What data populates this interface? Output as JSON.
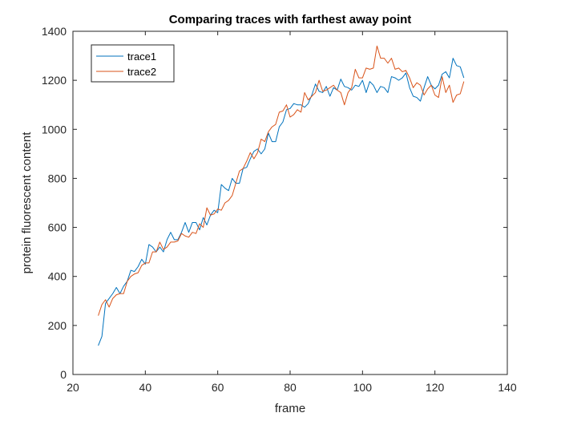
{
  "chart_data": {
    "type": "line",
    "title": "Comparing traces with farthest away point",
    "xlabel": "frame",
    "ylabel": "protein fluorescent content",
    "xlim": [
      20,
      140
    ],
    "ylim": [
      0,
      1400
    ],
    "xticks": [
      20,
      40,
      60,
      80,
      100,
      120,
      140
    ],
    "yticks": [
      0,
      200,
      400,
      600,
      800,
      1000,
      1200,
      1400
    ],
    "grid": false,
    "legend": "top-left",
    "series": [
      {
        "name": "trace1",
        "color": "#0072BD",
        "x": [
          27,
          28,
          29,
          30,
          31,
          32,
          33,
          34,
          35,
          36,
          37,
          38,
          39,
          40,
          41,
          42,
          43,
          44,
          45,
          46,
          47,
          48,
          49,
          50,
          51,
          52,
          53,
          54,
          55,
          56,
          57,
          58,
          59,
          60,
          61,
          62,
          63,
          64,
          65,
          66,
          67,
          68,
          69,
          70,
          71,
          72,
          73,
          74,
          75,
          76,
          77,
          78,
          79,
          80,
          81,
          82,
          83,
          84,
          85,
          86,
          87,
          88,
          89,
          90,
          91,
          92,
          93,
          94,
          95,
          96,
          97,
          98,
          99,
          100,
          101,
          102,
          103,
          104,
          105,
          106,
          107,
          108,
          109,
          110,
          111,
          112,
          113,
          114,
          115,
          116,
          117,
          118,
          119,
          120,
          121,
          122,
          123,
          124,
          125,
          126,
          127,
          128
        ],
        "y": [
          118,
          155,
          290,
          310,
          330,
          355,
          330,
          360,
          380,
          425,
          420,
          440,
          470,
          450,
          530,
          520,
          500,
          520,
          500,
          550,
          580,
          550,
          550,
          580,
          620,
          580,
          620,
          620,
          590,
          640,
          610,
          650,
          670,
          660,
          775,
          760,
          750,
          800,
          780,
          780,
          840,
          845,
          880,
          910,
          920,
          900,
          920,
          985,
          950,
          950,
          1010,
          1030,
          1080,
          1085,
          1105,
          1100,
          1100,
          1090,
          1105,
          1140,
          1185,
          1155,
          1150,
          1175,
          1135,
          1170,
          1160,
          1205,
          1175,
          1170,
          1160,
          1180,
          1175,
          1200,
          1150,
          1195,
          1180,
          1150,
          1175,
          1170,
          1150,
          1215,
          1210,
          1200,
          1210,
          1230,
          1170,
          1135,
          1130,
          1115,
          1170,
          1215,
          1180,
          1165,
          1180,
          1225,
          1235,
          1210,
          1290,
          1260,
          1255,
          1210
        ]
      },
      {
        "name": "trace2",
        "color": "#D95319",
        "x": [
          27,
          28,
          29,
          30,
          31,
          32,
          33,
          34,
          35,
          36,
          37,
          38,
          39,
          40,
          41,
          42,
          43,
          44,
          45,
          46,
          47,
          48,
          49,
          50,
          51,
          52,
          53,
          54,
          55,
          56,
          57,
          58,
          59,
          60,
          61,
          62,
          63,
          64,
          65,
          66,
          67,
          68,
          69,
          70,
          71,
          72,
          73,
          74,
          75,
          76,
          77,
          78,
          79,
          80,
          81,
          82,
          83,
          84,
          85,
          86,
          87,
          88,
          89,
          90,
          91,
          92,
          93,
          94,
          95,
          96,
          97,
          98,
          99,
          100,
          101,
          102,
          103,
          104,
          105,
          106,
          107,
          108,
          109,
          110,
          111,
          112,
          113,
          114,
          115,
          116,
          117,
          118,
          119,
          120,
          121,
          122,
          123,
          124,
          125,
          126,
          127,
          128
        ],
        "y": [
          240,
          285,
          305,
          275,
          310,
          325,
          330,
          330,
          380,
          400,
          410,
          415,
          445,
          455,
          455,
          500,
          500,
          540,
          510,
          520,
          540,
          540,
          545,
          575,
          565,
          560,
          580,
          575,
          615,
          600,
          680,
          650,
          655,
          675,
          670,
          700,
          710,
          730,
          780,
          830,
          840,
          870,
          905,
          880,
          905,
          960,
          950,
          990,
          1010,
          1020,
          1070,
          1075,
          1100,
          1050,
          1060,
          1080,
          1070,
          1150,
          1120,
          1135,
          1150,
          1200,
          1155,
          1160,
          1170,
          1180,
          1160,
          1150,
          1100,
          1150,
          1170,
          1245,
          1210,
          1210,
          1250,
          1245,
          1250,
          1340,
          1290,
          1290,
          1270,
          1290,
          1245,
          1250,
          1235,
          1240,
          1210,
          1170,
          1190,
          1180,
          1140,
          1165,
          1180,
          1140,
          1130,
          1215,
          1150,
          1180,
          1110,
          1140,
          1145,
          1195
        ]
      }
    ]
  }
}
